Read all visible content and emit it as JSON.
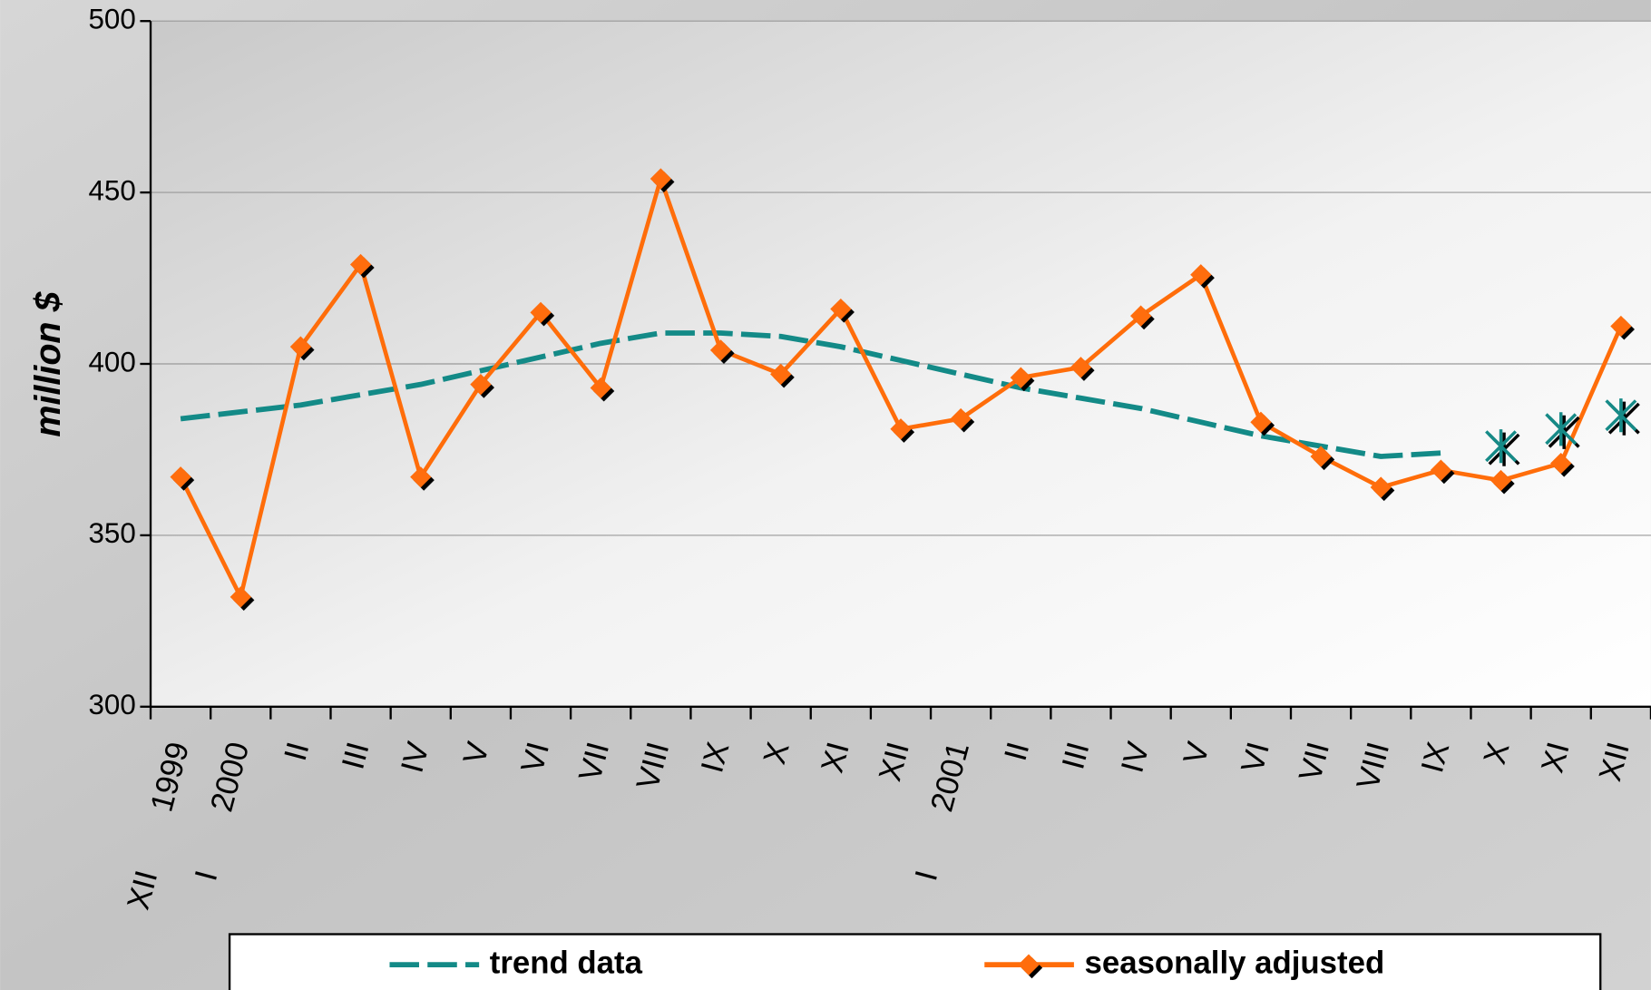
{
  "chart_data": {
    "type": "line",
    "y_label": "million $",
    "categories": [
      "XII",
      "I",
      "II",
      "III",
      "IV",
      "V",
      "VI",
      "VII",
      "VIII",
      "IX",
      "X",
      "XI",
      "XII",
      "I",
      "II",
      "III",
      "IV",
      "V",
      "VI",
      "VII",
      "VIII",
      "IX",
      "X",
      "XI",
      "XII"
    ],
    "years": [
      "1999",
      "2000",
      null,
      null,
      null,
      null,
      null,
      null,
      null,
      null,
      null,
      null,
      null,
      "2001",
      null,
      null,
      null,
      null,
      null,
      null,
      null,
      null,
      null,
      null,
      null
    ],
    "series": [
      {
        "name": "trend data",
        "color": "#138a87",
        "style": "dashed",
        "marker": "none",
        "values": [
          384,
          386,
          388,
          391,
          394,
          398,
          402,
          406,
          409,
          409,
          408,
          405,
          401,
          397,
          393,
          390,
          387,
          383,
          379,
          376,
          373,
          374,
          null,
          null,
          null
        ]
      },
      {
        "name": "seasonally adjusted",
        "color": "#ff6d0a",
        "style": "solid",
        "marker": "diamond",
        "values": [
          367,
          332,
          405,
          429,
          367,
          394,
          415,
          393,
          454,
          404,
          397,
          416,
          381,
          384,
          396,
          399,
          414,
          426,
          383,
          373,
          364,
          369,
          366,
          371,
          411
        ]
      },
      {
        "color": "#138a87",
        "style": "none",
        "marker": "star",
        "values": [
          null,
          null,
          null,
          null,
          null,
          null,
          null,
          null,
          null,
          null,
          null,
          null,
          null,
          null,
          null,
          null,
          null,
          null,
          null,
          null,
          null,
          null,
          376,
          381,
          385
        ]
      }
    ],
    "legend_series": [
      0,
      1
    ],
    "ylim": [
      300,
      500
    ],
    "yticks": [
      300,
      350,
      400,
      450,
      500
    ],
    "grid": true
  }
}
